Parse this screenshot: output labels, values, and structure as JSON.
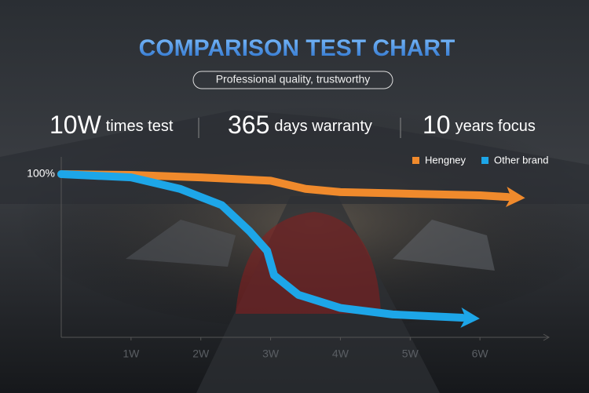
{
  "chart_data": {
    "type": "line",
    "title": "COMPARISON TEST CHART",
    "subtitle": "Professional quality, trustworthy",
    "annotations": [
      {
        "number": "10W",
        "text": "times test"
      },
      {
        "number": "365",
        "text": "days warranty"
      },
      {
        "number": "10",
        "text": "years focus"
      }
    ],
    "series": [
      {
        "name": "Hengney",
        "color": "#f08a2c",
        "x": [
          0,
          1,
          2,
          3,
          3.5,
          4,
          5,
          6,
          6.4
        ],
        "values": [
          100,
          99.5,
          98,
          96,
          91,
          89,
          88,
          87,
          86
        ]
      },
      {
        "name": "Other brand",
        "color": "#1da6e8",
        "x": [
          0,
          1,
          1.7,
          2.3,
          2.7,
          2.95,
          3.05,
          3.4,
          4,
          4.75,
          5.75
        ],
        "values": [
          100,
          98,
          91,
          81,
          65,
          53,
          38,
          26,
          18,
          14,
          12
        ]
      }
    ],
    "xlim": [
      0,
      7
    ],
    "xticks": [
      {
        "value": 1,
        "label": "1W"
      },
      {
        "value": 2,
        "label": "2W"
      },
      {
        "value": 3,
        "label": "3W"
      },
      {
        "value": 4,
        "label": "4W"
      },
      {
        "value": 5,
        "label": "5W"
      },
      {
        "value": 6,
        "label": "6W"
      }
    ],
    "ylim": [
      0,
      100
    ],
    "yticks": [
      {
        "value": 100,
        "label": "100%"
      }
    ],
    "legend": "top-right"
  }
}
